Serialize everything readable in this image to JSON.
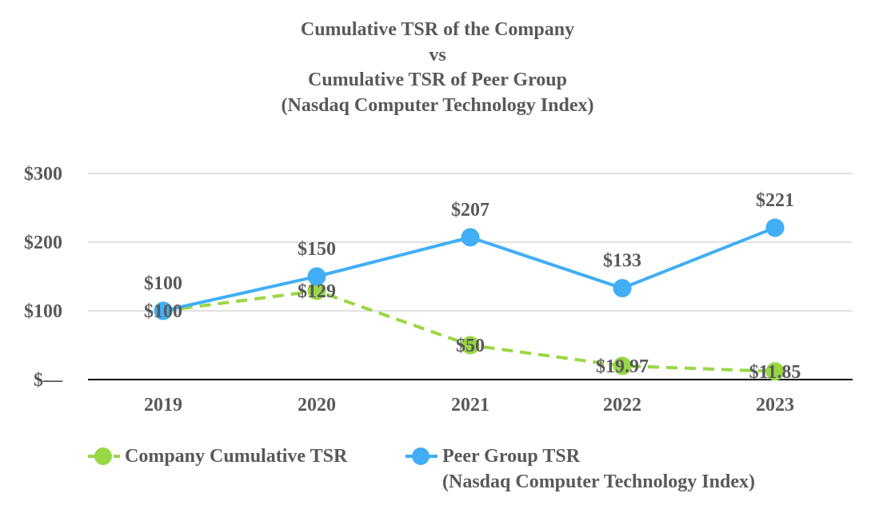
{
  "chart_data": {
    "type": "line",
    "title_lines": [
      "Cumulative TSR of the Company",
      "vs",
      "Cumulative TSR of Peer Group",
      "(Nasdaq Computer Technology Index)"
    ],
    "categories": [
      "2019",
      "2020",
      "2021",
      "2022",
      "2023"
    ],
    "ylim": [
      0,
      300
    ],
    "yticks": [
      0,
      100,
      200,
      300
    ],
    "ytick_labels": [
      "$—",
      "$100",
      "$200",
      "$300"
    ],
    "grid": true,
    "legend_position": "bottom-left",
    "series": [
      {
        "name": "Company Cumulative TSR",
        "style": "dashed",
        "color": "#99d745",
        "values": [
          100,
          129,
          50,
          19.97,
          11.85
        ],
        "labels": [
          "$100",
          "$129",
          "$50",
          "$19.97",
          "$11.85"
        ]
      },
      {
        "name": "Peer Group TSR",
        "name_line2": "(Nasdaq Computer Technology Index)",
        "style": "solid",
        "color": "#41aef5",
        "values": [
          100,
          150,
          207,
          133,
          221
        ],
        "labels": [
          "$100",
          "$150",
          "$207",
          "$133",
          "$221"
        ]
      }
    ]
  }
}
